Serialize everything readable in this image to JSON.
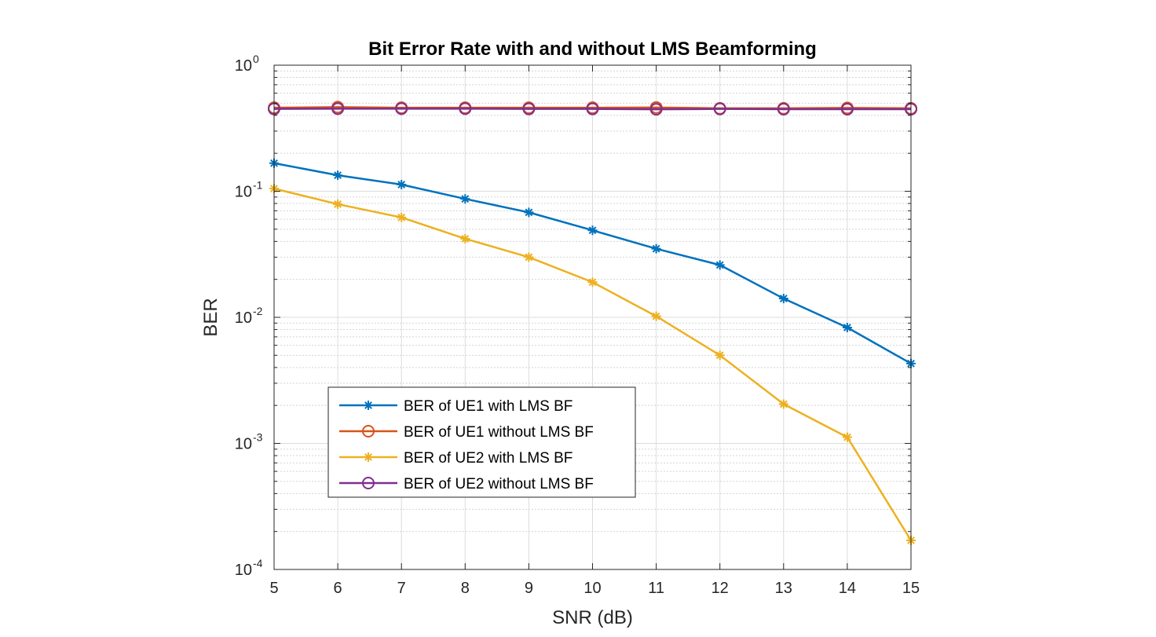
{
  "chart_data": {
    "type": "line",
    "title": "Bit Error Rate with and without LMS Beamforming",
    "xlabel": "SNR (dB)",
    "ylabel": "BER",
    "xlim": [
      5,
      15
    ],
    "ylim": [
      0.0001,
      1
    ],
    "yscale": "log",
    "grid": true,
    "minor_grid": true,
    "legend_position": "lower-left",
    "x": [
      5,
      6,
      7,
      8,
      9,
      10,
      11,
      12,
      13,
      14,
      15
    ],
    "x_ticks": [
      "5",
      "6",
      "7",
      "8",
      "9",
      "10",
      "11",
      "12",
      "13",
      "14",
      "15"
    ],
    "y_ticks": [
      {
        "base": "10",
        "exp": "0"
      },
      {
        "base": "10",
        "exp": "-1"
      },
      {
        "base": "10",
        "exp": "-2"
      },
      {
        "base": "10",
        "exp": "-3"
      },
      {
        "base": "10",
        "exp": "-4"
      }
    ],
    "series": [
      {
        "name": "BER of UE1 with LMS BF",
        "color": "#0072BD",
        "marker": "asterisk",
        "values": [
          0.167,
          0.134,
          0.113,
          0.087,
          0.068,
          0.049,
          0.035,
          0.026,
          0.0141,
          0.0083,
          0.0043
        ]
      },
      {
        "name": "BER of UE1 without LMS BF",
        "color": "#D95319",
        "marker": "circle",
        "values": [
          0.46,
          0.465,
          0.46,
          0.46,
          0.46,
          0.46,
          0.462,
          0.455,
          0.455,
          0.458,
          0.455
        ]
      },
      {
        "name": "BER of UE2 with LMS BF",
        "color": "#EDB120",
        "marker": "asterisk",
        "values": [
          0.105,
          0.079,
          0.062,
          0.042,
          0.03,
          0.019,
          0.0102,
          0.005,
          0.00205,
          0.00112,
          0.00017
        ]
      },
      {
        "name": "BER of UE2 without LMS BF",
        "color": "#7E2F8E",
        "marker": "circle",
        "values": [
          0.45,
          0.452,
          0.452,
          0.452,
          0.45,
          0.45,
          0.447,
          0.45,
          0.448,
          0.448,
          0.448
        ]
      }
    ]
  }
}
